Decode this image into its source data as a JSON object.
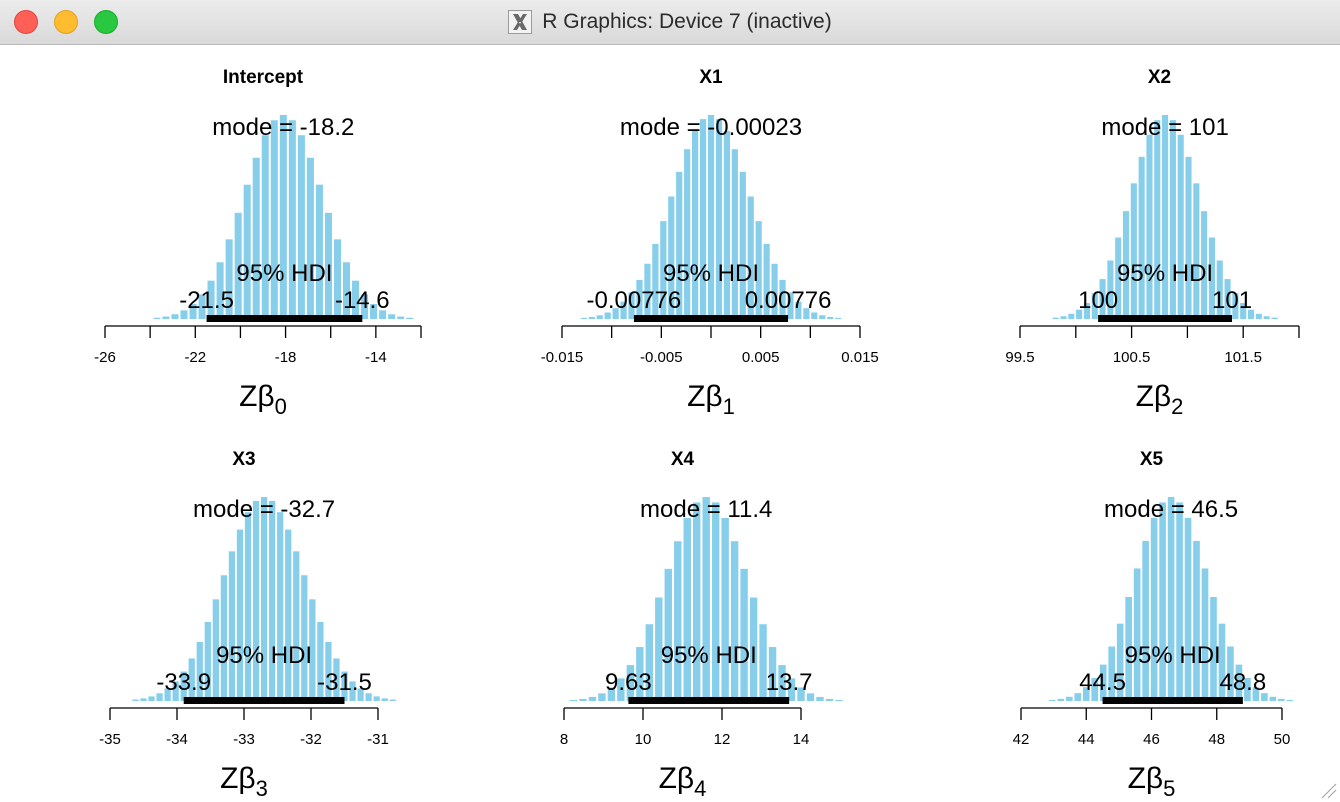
{
  "window": {
    "title": "R Graphics: Device 7 (inactive)",
    "app_icon": "x11-icon",
    "controls": [
      "close-button",
      "minimize-button",
      "zoom-button"
    ]
  },
  "style": {
    "bar_fill": "#87ceeb",
    "hdi_color": "#000000",
    "text_color": "#000000"
  },
  "chart_data": [
    {
      "type": "bar",
      "title": "Intercept",
      "xlabel_base": "Zβ",
      "xlabel_sub": "0",
      "mode_label": "mode = -18.2",
      "hdi_label": "95% HDI",
      "hdi": [
        -21.5,
        -14.6
      ],
      "hdi_low_label": "-21.5",
      "hdi_high_label": "-14.6",
      "xlim": [
        -26,
        -12
      ],
      "ticks": [
        -26,
        -24,
        -22,
        -20,
        -18,
        -16,
        -14,
        -12
      ],
      "tick_labels": [
        "-26",
        "",
        "-22",
        "",
        "-18",
        "",
        "-14",
        ""
      ],
      "center": -18.1,
      "sd": 1.75,
      "bin_width": 0.4
    },
    {
      "type": "bar",
      "title": "X1",
      "xlabel_base": "Zβ",
      "xlabel_sub": "1",
      "mode_label": "mode = -0.00023",
      "hdi_label": "95% HDI",
      "hdi": [
        -0.00776,
        0.00776
      ],
      "hdi_low_label": "-0.00776",
      "hdi_high_label": "0.00776",
      "xlim": [
        -0.015,
        0.015
      ],
      "ticks": [
        -0.015,
        -0.01,
        -0.005,
        0,
        0.005,
        0.01,
        0.015
      ],
      "tick_labels": [
        "-0.015",
        "",
        "-0.005",
        "",
        "0.005",
        "",
        "0.015"
      ],
      "center": 0,
      "sd": 0.00396,
      "bin_width": 0.0008
    },
    {
      "type": "bar",
      "title": "X2",
      "xlabel_base": "Zβ",
      "xlabel_sub": "2",
      "mode_label": "mode = 101",
      "hdi_label": "95% HDI",
      "hdi": [
        100.2,
        101.4
      ],
      "hdi_low_label": "100",
      "hdi_high_label": "101",
      "xlim": [
        99.5,
        102
      ],
      "ticks": [
        99.5,
        100,
        100.5,
        101,
        101.5,
        102
      ],
      "tick_labels": [
        "99.5",
        "",
        "100.5",
        "",
        "101.5",
        ""
      ],
      "center": 100.8,
      "sd": 0.31,
      "bin_width": 0.07
    },
    {
      "type": "bar",
      "title": "X3",
      "xlabel_base": "Zβ",
      "xlabel_sub": "3",
      "mode_label": "mode = -32.7",
      "hdi_label": "95% HDI",
      "hdi": [
        -33.9,
        -31.5
      ],
      "hdi_low_label": "-33.9",
      "hdi_high_label": "-31.5",
      "xlim": [
        -35,
        -31
      ],
      "ticks": [
        -35,
        -34,
        -33,
        -32,
        -31
      ],
      "tick_labels": [
        "-35",
        "-34",
        "-33",
        "-32",
        "-31"
      ],
      "center": -32.7,
      "sd": 0.61,
      "bin_width": 0.12
    },
    {
      "type": "bar",
      "title": "X4",
      "xlabel_base": "Zβ",
      "xlabel_sub": "4",
      "mode_label": "mode = 11.4",
      "hdi_label": "95% HDI",
      "hdi": [
        9.63,
        13.7
      ],
      "hdi_low_label": "9.63",
      "hdi_high_label": "13.7",
      "xlim": [
        8,
        14
      ],
      "ticks": [
        8,
        10,
        12,
        14
      ],
      "tick_labels": [
        "8",
        "10",
        "12",
        "14"
      ],
      "center": 11.6,
      "sd": 1.03,
      "bin_width": 0.24
    },
    {
      "type": "bar",
      "title": "X5",
      "xlabel_base": "Zβ",
      "xlabel_sub": "5",
      "mode_label": "mode = 46.5",
      "hdi_label": "95% HDI",
      "hdi": [
        44.5,
        48.8
      ],
      "hdi_low_label": "44.5",
      "hdi_high_label": "48.8",
      "xlim": [
        42,
        50
      ],
      "ticks": [
        42,
        44,
        46,
        48,
        50
      ],
      "tick_labels": [
        "42",
        "44",
        "46",
        "48",
        "50"
      ],
      "center": 46.6,
      "sd": 1.12,
      "bin_width": 0.26
    }
  ]
}
